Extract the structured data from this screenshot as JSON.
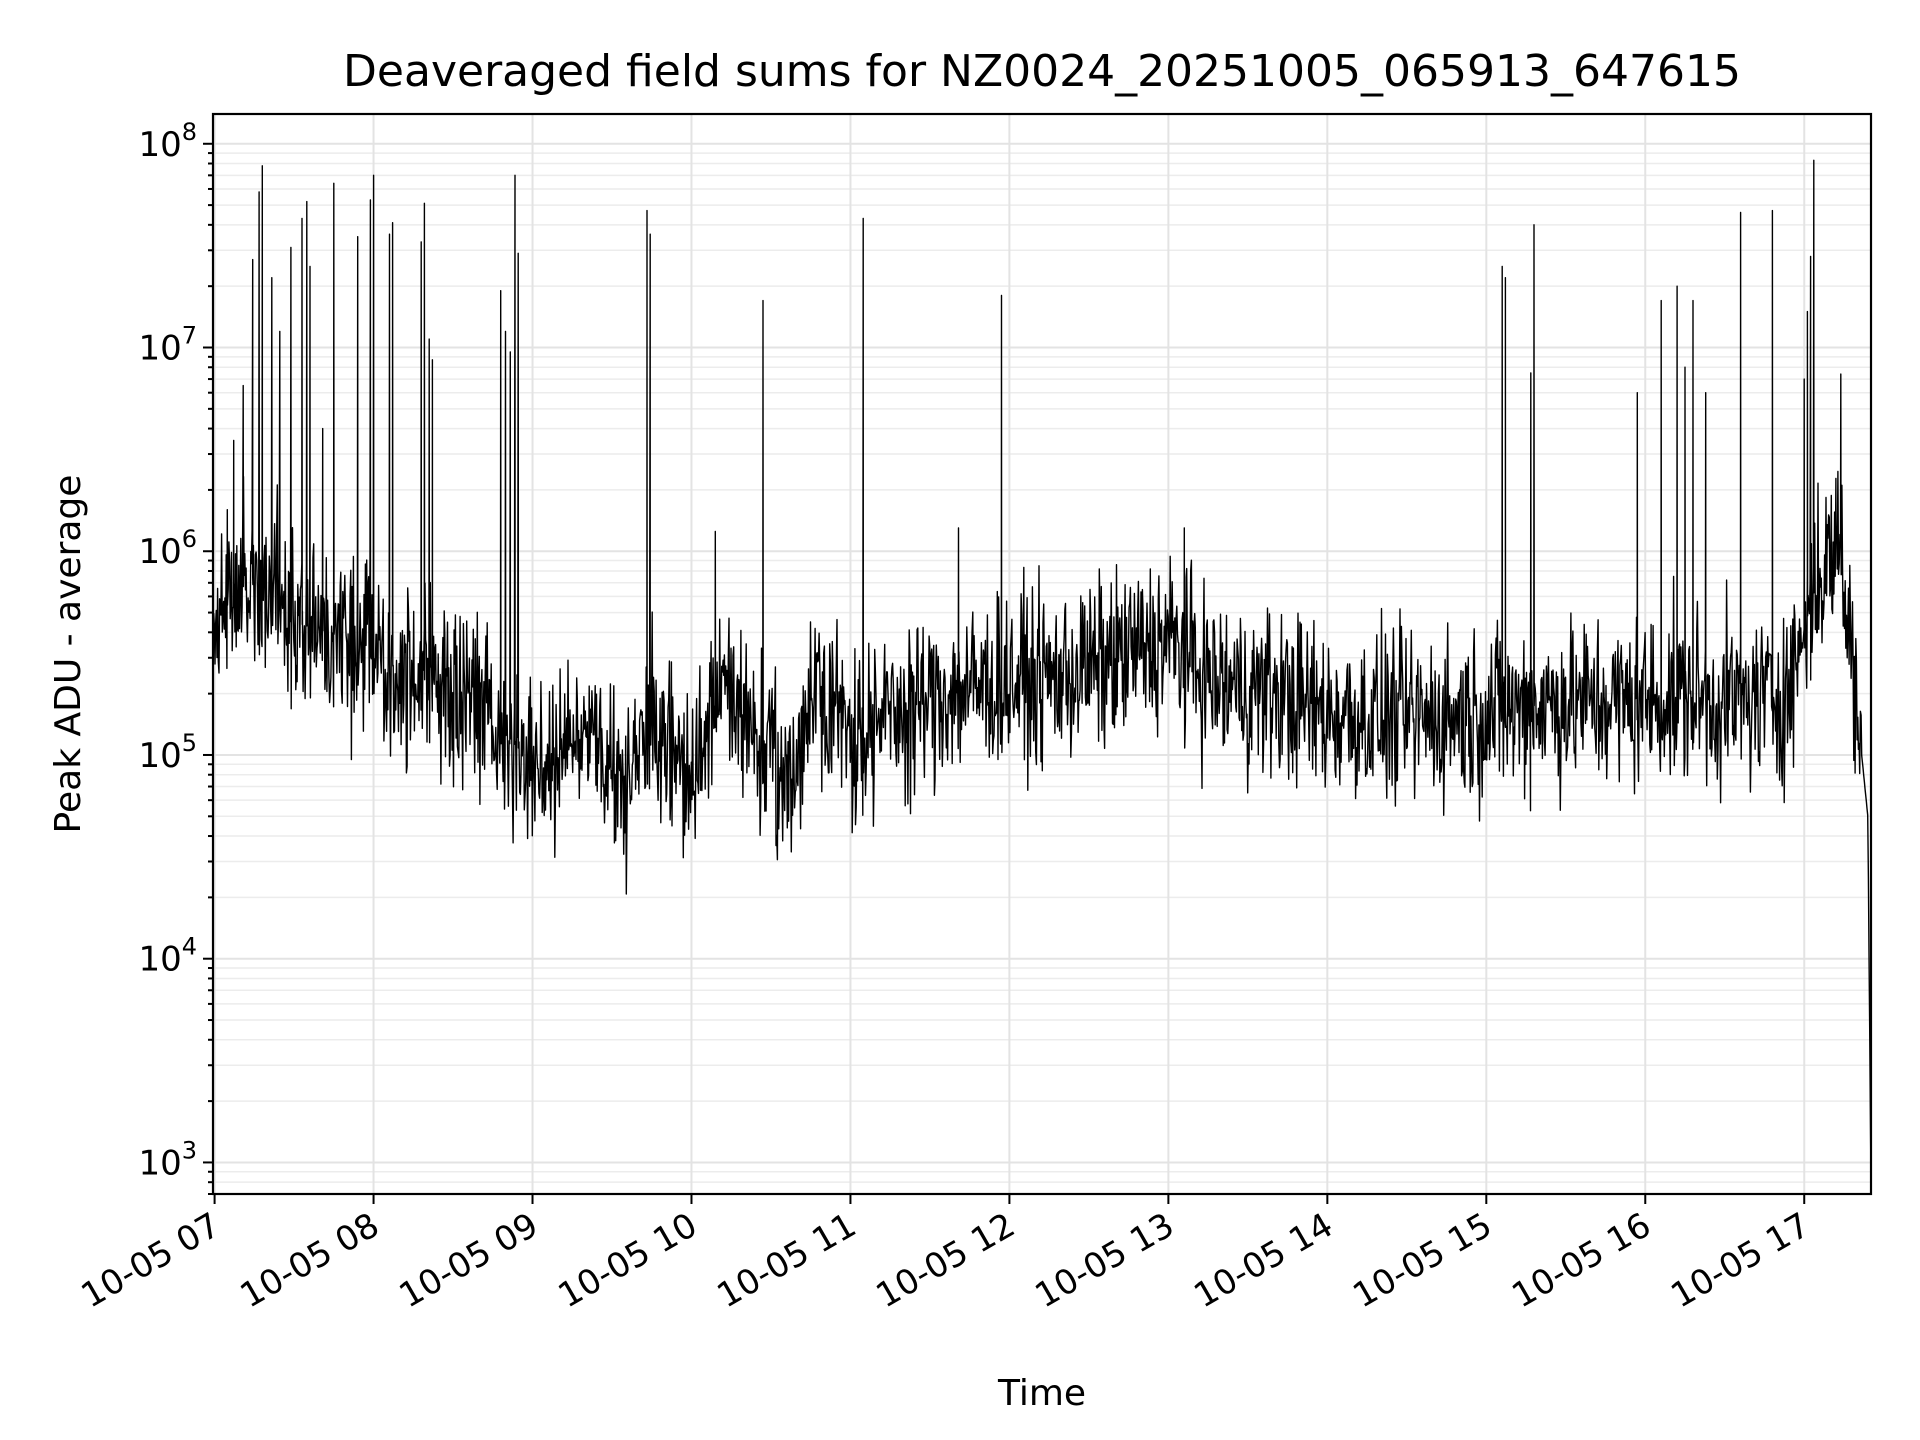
{
  "chart_data": {
    "type": "line",
    "title": "Deaveraged field sums for NZ0024_20251005_065913_647615",
    "xlabel": "Time",
    "ylabel": "Peak ADU - average",
    "yscale": "log",
    "grid": true,
    "x_tick_labels": [
      "10-05 07",
      "10-05 08",
      "10-05 09",
      "10-05 10",
      "10-05 11",
      "10-05 12",
      "10-05 13",
      "10-05 14",
      "10-05 15",
      "10-05 16",
      "10-05 17"
    ],
    "x_tick_hours": [
      7,
      8,
      9,
      10,
      11,
      12,
      13,
      14,
      15,
      16,
      17
    ],
    "xlim_hours": [
      6.99,
      17.42
    ],
    "y_ticks": [
      {
        "base": "10",
        "exp": "3",
        "value": 1000
      },
      {
        "base": "10",
        "exp": "4",
        "value": 10000
      },
      {
        "base": "10",
        "exp": "5",
        "value": 100000
      },
      {
        "base": "10",
        "exp": "6",
        "value": 1000000
      },
      {
        "base": "10",
        "exp": "7",
        "value": 10000000
      },
      {
        "base": "10",
        "exp": "8",
        "value": 100000000
      }
    ],
    "ylim": [
      700,
      140000000
    ],
    "series": [
      {
        "name": "Peak ADU - average",
        "color": "#000000",
        "baseline": [
          [
            6.99,
            450000
          ],
          [
            7.2,
            700000
          ],
          [
            7.35,
            650000
          ],
          [
            7.5,
            450000
          ],
          [
            7.8,
            380000
          ],
          [
            8.0,
            300000
          ],
          [
            8.4,
            220000
          ],
          [
            8.75,
            150000
          ],
          [
            9.0,
            90000
          ],
          [
            9.3,
            120000
          ],
          [
            9.6,
            75000
          ],
          [
            9.75,
            150000
          ],
          [
            10.0,
            70000
          ],
          [
            10.15,
            200000
          ],
          [
            10.35,
            160000
          ],
          [
            10.6,
            65000
          ],
          [
            10.8,
            250000
          ],
          [
            11.0,
            120000
          ],
          [
            11.3,
            160000
          ],
          [
            11.6,
            200000
          ],
          [
            12.0,
            230000
          ],
          [
            12.3,
            240000
          ],
          [
            12.7,
            300000
          ],
          [
            13.0,
            370000
          ],
          [
            13.3,
            220000
          ],
          [
            13.7,
            200000
          ],
          [
            14.0,
            160000
          ],
          [
            14.5,
            150000
          ],
          [
            15.0,
            160000
          ],
          [
            15.4,
            180000
          ],
          [
            15.8,
            180000
          ],
          [
            16.2,
            190000
          ],
          [
            16.6,
            180000
          ],
          [
            16.9,
            200000
          ],
          [
            17.05,
            600000
          ],
          [
            17.22,
            1200000
          ],
          [
            17.3,
            300000
          ],
          [
            17.4,
            50000
          ],
          [
            17.42,
            800
          ]
        ],
        "noise_decades": 0.62,
        "samples_per_hour": 240,
        "spikes": [
          {
            "t": 7.08,
            "v": 1600000
          },
          {
            "t": 7.12,
            "v": 3500000
          },
          {
            "t": 7.18,
            "v": 6500000
          },
          {
            "t": 7.24,
            "v": 27000000
          },
          {
            "t": 7.28,
            "v": 58000000
          },
          {
            "t": 7.3,
            "v": 78000000
          },
          {
            "t": 7.36,
            "v": 22000000
          },
          {
            "t": 7.41,
            "v": 12000000
          },
          {
            "t": 7.48,
            "v": 31000000
          },
          {
            "t": 7.55,
            "v": 43000000
          },
          {
            "t": 7.58,
            "v": 52000000
          },
          {
            "t": 7.6,
            "v": 25000000
          },
          {
            "t": 7.68,
            "v": 4000000
          },
          {
            "t": 7.75,
            "v": 64000000
          },
          {
            "t": 7.9,
            "v": 35000000
          },
          {
            "t": 7.98,
            "v": 53000000
          },
          {
            "t": 8.0,
            "v": 70000000
          },
          {
            "t": 8.1,
            "v": 36000000
          },
          {
            "t": 8.12,
            "v": 41000000
          },
          {
            "t": 8.3,
            "v": 33000000
          },
          {
            "t": 8.32,
            "v": 51000000
          },
          {
            "t": 8.35,
            "v": 11000000
          },
          {
            "t": 8.37,
            "v": 8700000
          },
          {
            "t": 8.8,
            "v": 19000000
          },
          {
            "t": 8.83,
            "v": 12000000
          },
          {
            "t": 8.86,
            "v": 9500000
          },
          {
            "t": 8.89,
            "v": 70000000
          },
          {
            "t": 8.91,
            "v": 29000000
          },
          {
            "t": 9.72,
            "v": 47000000
          },
          {
            "t": 9.74,
            "v": 36000000
          },
          {
            "t": 10.15,
            "v": 1250000
          },
          {
            "t": 10.45,
            "v": 17000000
          },
          {
            "t": 11.08,
            "v": 43000000
          },
          {
            "t": 11.68,
            "v": 1300000
          },
          {
            "t": 11.95,
            "v": 18000000
          },
          {
            "t": 13.1,
            "v": 1300000
          },
          {
            "t": 15.1,
            "v": 25000000
          },
          {
            "t": 15.12,
            "v": 22000000
          },
          {
            "t": 15.28,
            "v": 7500000
          },
          {
            "t": 15.3,
            "v": 40000000
          },
          {
            "t": 15.95,
            "v": 6000000
          },
          {
            "t": 16.1,
            "v": 17000000
          },
          {
            "t": 16.2,
            "v": 20000000
          },
          {
            "t": 16.25,
            "v": 8000000
          },
          {
            "t": 16.3,
            "v": 17000000
          },
          {
            "t": 16.38,
            "v": 6000000
          },
          {
            "t": 16.6,
            "v": 46000000
          },
          {
            "t": 16.8,
            "v": 47000000
          },
          {
            "t": 17.0,
            "v": 7000000
          },
          {
            "t": 17.02,
            "v": 15000000
          },
          {
            "t": 17.04,
            "v": 28000000
          },
          {
            "t": 17.06,
            "v": 83000000
          },
          {
            "t": 17.2,
            "v": 1500000
          },
          {
            "t": 17.23,
            "v": 7400000
          }
        ]
      }
    ]
  }
}
